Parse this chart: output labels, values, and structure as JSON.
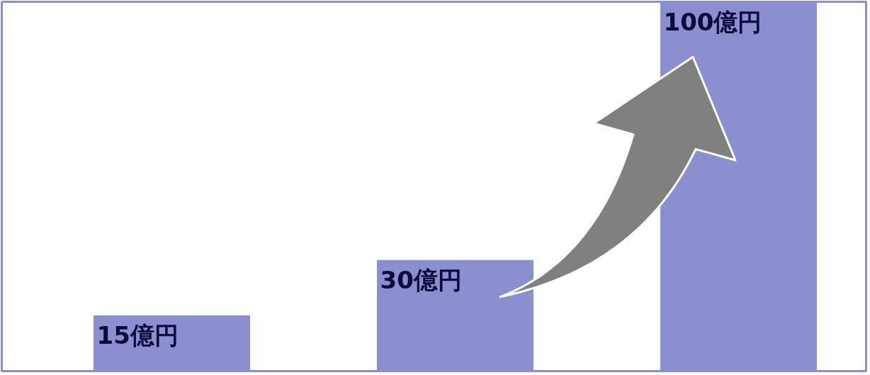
{
  "chart_data": {
    "type": "bar",
    "categories": [
      null,
      null,
      null
    ],
    "values": [
      15,
      30,
      100
    ],
    "color": "#8b8ecf",
    "value_labels": [
      "15億円",
      "30億円",
      "100億円"
    ],
    "grid": false,
    "tick_labels": false
  }
}
